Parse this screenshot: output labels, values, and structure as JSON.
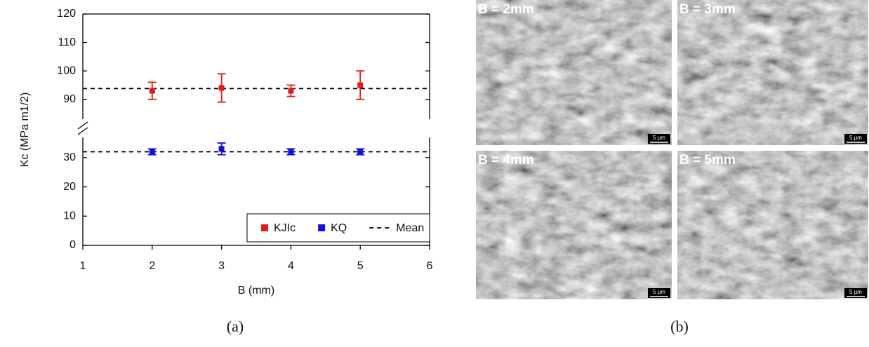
{
  "chart_data": {
    "type": "scatter",
    "y_label": "Kc (MPa m1/2)",
    "x_label": "B (mm)",
    "xlim": [
      1,
      6
    ],
    "xticks": [
      1,
      2,
      3,
      4,
      5,
      6
    ],
    "ylim": [
      0,
      120
    ],
    "yticks": [
      0,
      10,
      20,
      30,
      90,
      100,
      110,
      120
    ],
    "y_break": [
      35,
      85
    ],
    "legend": "bottom-right",
    "series": [
      {
        "name": "KJIc",
        "color": "#e41a1c",
        "x": [
          2,
          3,
          4,
          5
        ],
        "values": [
          93,
          94,
          93,
          95
        ],
        "errors": [
          3,
          5,
          2,
          5
        ]
      },
      {
        "name": "KQ",
        "color": "#1010e0",
        "x": [
          2,
          3,
          4,
          5
        ],
        "values": [
          32,
          33,
          32,
          32
        ],
        "errors": [
          1,
          2,
          1,
          1
        ]
      }
    ],
    "mean": {
      "name": "Mean",
      "values": [
        93.8,
        32
      ]
    }
  },
  "images": [
    {
      "label": "B = 2mm",
      "scale_bar": "5 µm"
    },
    {
      "label": "B = 3mm",
      "scale_bar": "5 µm"
    },
    {
      "label": "B = 4mm",
      "scale_bar": "5 µm"
    },
    {
      "label": "B = 5mm",
      "scale_bar": "5 µm"
    }
  ],
  "panel_labels": [
    "(a)",
    "(b)"
  ]
}
